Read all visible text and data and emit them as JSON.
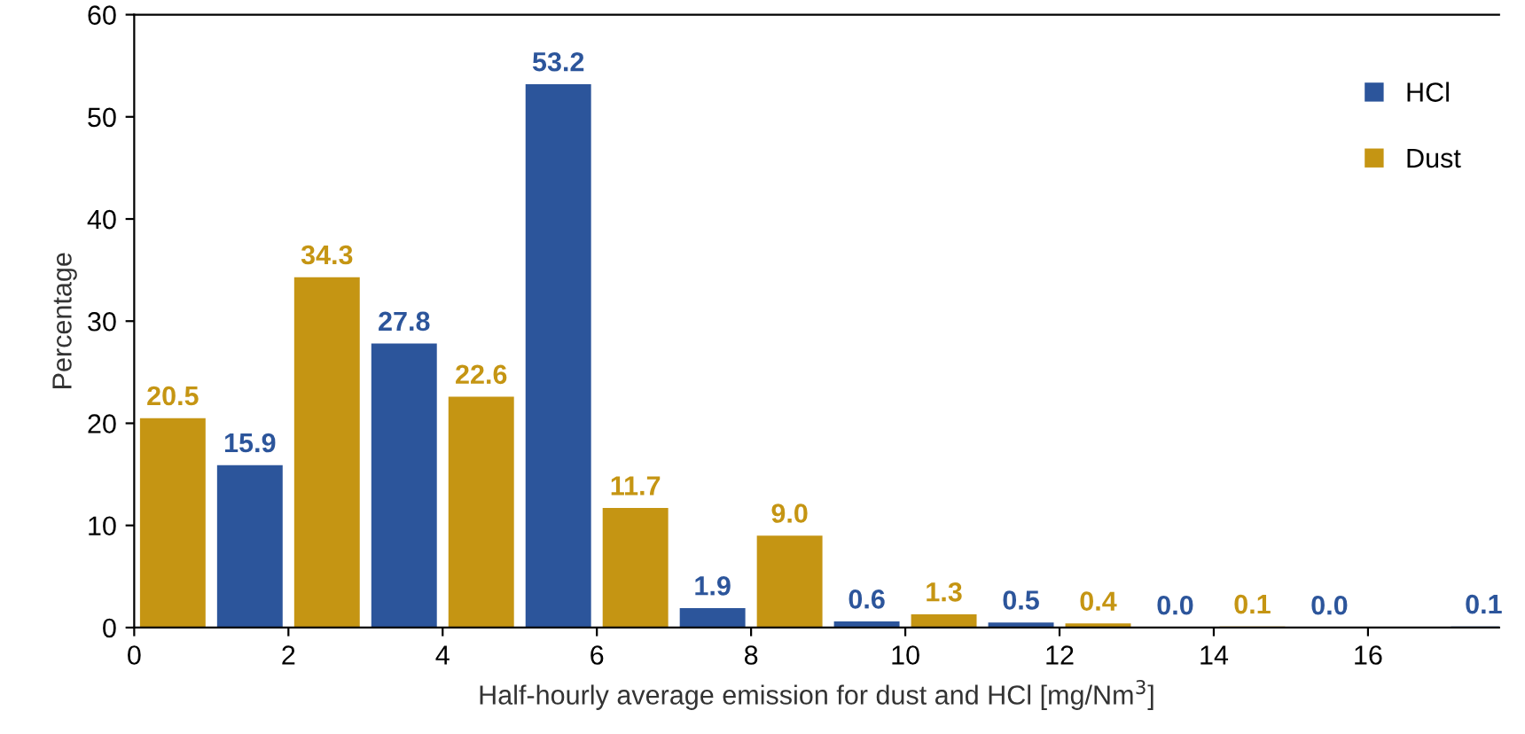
{
  "chart_data": {
    "type": "bar",
    "xlabel": "Half-hourly average emission for dust and HCl [mg/Nm$^{3}$]",
    "ylabel": "Percentage",
    "xlim": [
      0,
      17.7
    ],
    "xticks": [
      0,
      2,
      4,
      6,
      8,
      10,
      12,
      14,
      16
    ],
    "ylim": [
      0,
      60
    ],
    "yticks": [
      0,
      10,
      20,
      30,
      40,
      50,
      60
    ],
    "series": [
      {
        "name": "HCl",
        "color": "#2c559b",
        "x": [
          1.5,
          3.5,
          5.5,
          7.5,
          9.5,
          11.5,
          13.5,
          15.5,
          17.5
        ],
        "values": [
          15.9,
          27.8,
          53.2,
          1.9,
          0.6,
          0.5,
          0.0,
          0.0,
          0.1
        ],
        "value_labels": [
          "15.9",
          "27.8",
          "53.2",
          "1.9",
          "0.6",
          "0.5",
          "0.0",
          "0.0",
          "0.1"
        ]
      },
      {
        "name": "Dust",
        "color": "#c59513",
        "x": [
          0.5,
          2.5,
          4.5,
          6.5,
          8.5,
          10.5,
          12.5,
          14.5
        ],
        "values": [
          20.5,
          34.3,
          22.6,
          11.7,
          9.0,
          1.3,
          0.4,
          0.1
        ],
        "value_labels": [
          "20.5",
          "34.3",
          "22.6",
          "11.7",
          "9.0",
          "1.3",
          "0.4",
          "0.1"
        ]
      }
    ],
    "grid": false,
    "legend": "top right"
  }
}
